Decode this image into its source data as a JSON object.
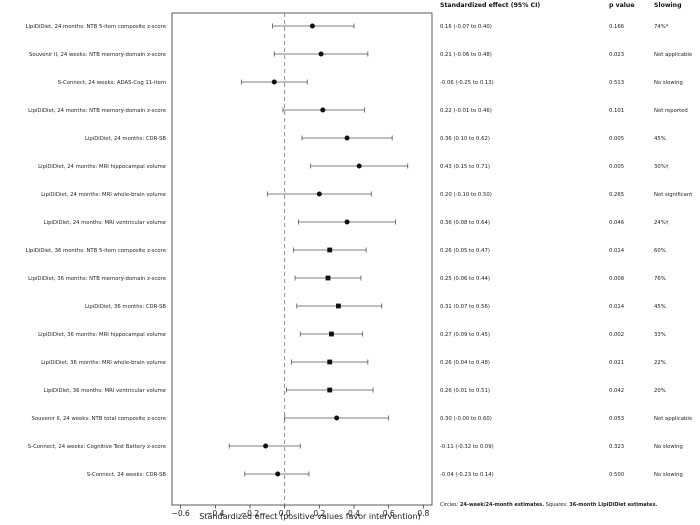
{
  "chart_data": {
    "type": "forest",
    "xlabel": "Standardized effect (positive values favor intervention)",
    "xlim": [
      -0.65,
      0.85
    ],
    "xticks": [
      -0.6,
      -0.4,
      -0.2,
      0.0,
      0.2,
      0.4,
      0.6,
      0.8
    ],
    "xtick_labels": [
      "−0.6",
      "−0.4",
      "−0.2",
      "0.0",
      "0.2",
      "0.4",
      "0.6",
      "0.8"
    ],
    "reference_line": 0.0,
    "grid": false,
    "column_headers": {
      "effect": "Standardized effect (95% CI)",
      "p": "p value",
      "slowing": "Slowing"
    },
    "footnote_prefix": "Circles: ",
    "footnote_circles": "24-week/24-month estimates.",
    "footnote_mid": " Squares: ",
    "footnote_squares": "36-month LipiDiDiet estimates.",
    "rows": [
      {
        "label": "LipiDiDiet, 24 months: NTB 5-item composite z-score",
        "est": 0.16,
        "lo": -0.07,
        "hi": 0.4,
        "ci_text": "0.16 (-0.07 to 0.40)",
        "p": "0.166",
        "slowing": "74%*",
        "marker": "circle"
      },
      {
        "label": "Souvenir II, 24 weeks: NTB memory-domain z-score",
        "est": 0.21,
        "lo": -0.06,
        "hi": 0.48,
        "ci_text": "0.21 (-0.06 to 0.48)",
        "p": "0.023",
        "slowing": "Not applicable",
        "marker": "circle"
      },
      {
        "label": "S-Connect, 24 weeks: ADAS-Cog 11-item",
        "est": -0.06,
        "lo": -0.25,
        "hi": 0.13,
        "ci_text": "-0.06 (-0.25 to 0.13)",
        "p": "0.513",
        "slowing": "No slowing",
        "marker": "circle"
      },
      {
        "label": "LipiDiDiet, 24 months: NTB memory-domain z-score",
        "est": 0.22,
        "lo": -0.01,
        "hi": 0.46,
        "ci_text": "0.22 (-0.01 to 0.46)",
        "p": "0.101",
        "slowing": "Not reported",
        "marker": "circle"
      },
      {
        "label": "LipiDiDiet, 24 months: CDR-SB",
        "est": 0.36,
        "lo": 0.1,
        "hi": 0.62,
        "ci_text": "0.36 (0.10 to 0.62)",
        "p": "0.005",
        "slowing": "45%",
        "marker": "circle"
      },
      {
        "label": "LipiDiDiet, 24 months: MRI hippocampal volume",
        "est": 0.43,
        "lo": 0.15,
        "hi": 0.71,
        "ci_text": "0.43 (0.15 to 0.71)",
        "p": "0.005",
        "slowing": "30%†",
        "marker": "circle"
      },
      {
        "label": "LipiDiDiet, 24 months: MRI whole-brain volume",
        "est": 0.2,
        "lo": -0.1,
        "hi": 0.5,
        "ci_text": "0.20 (-0.10 to 0.50)",
        "p": "0.265",
        "slowing": "Not significant",
        "marker": "circle"
      },
      {
        "label": "LipiDiDiet, 24 months: MRI ventricular volume",
        "est": 0.36,
        "lo": 0.08,
        "hi": 0.64,
        "ci_text": "0.36 (0.08 to 0.64)",
        "p": "0.046",
        "slowing": "24%†",
        "marker": "circle"
      },
      {
        "label": "LipiDiDiet, 36 months: NTB 5-item composite z-score",
        "est": 0.26,
        "lo": 0.05,
        "hi": 0.47,
        "ci_text": "0.26 (0.05 to 0.47)",
        "p": "0.014",
        "slowing": "60%",
        "marker": "square"
      },
      {
        "label": "LipiDiDiet, 36 months: NTB memory-domain z-score",
        "est": 0.25,
        "lo": 0.06,
        "hi": 0.44,
        "ci_text": "0.25 (0.06 to 0.44)",
        "p": "0.008",
        "slowing": "76%",
        "marker": "square"
      },
      {
        "label": "LipiDiDiet, 36 months: CDR-SB",
        "est": 0.31,
        "lo": 0.07,
        "hi": 0.56,
        "ci_text": "0.31 (0.07 to 0.56)",
        "p": "0.014",
        "slowing": "45%",
        "marker": "square"
      },
      {
        "label": "LipiDiDiet, 36 months: MRI hippocampal volume",
        "est": 0.27,
        "lo": 0.09,
        "hi": 0.45,
        "ci_text": "0.27 (0.09 to 0.45)",
        "p": "0.002",
        "slowing": "33%",
        "marker": "square"
      },
      {
        "label": "LipiDiDiet, 36 months: MRI whole-brain volume",
        "est": 0.26,
        "lo": 0.04,
        "hi": 0.48,
        "ci_text": "0.26 (0.04 to 0.48)",
        "p": "0.021",
        "slowing": "22%",
        "marker": "square"
      },
      {
        "label": "LipiDiDiet, 36 months: MRI ventricular volume",
        "est": 0.26,
        "lo": 0.01,
        "hi": 0.51,
        "ci_text": "0.26 (0.01 to 0.51)",
        "p": "0.042",
        "slowing": "20%",
        "marker": "square"
      },
      {
        "label": "Souvenir II, 24 weeks: NTB total composite z-score",
        "est": 0.3,
        "lo": -0.0,
        "hi": 0.6,
        "ci_text": "0.30 (-0.00 to 0.60)",
        "p": "0.053",
        "slowing": "Not applicable",
        "marker": "circle"
      },
      {
        "label": "S-Connect, 24 weeks: Cognitive Test Battery z-score",
        "est": -0.11,
        "lo": -0.32,
        "hi": 0.09,
        "ci_text": "-0.11 (-0.32 to 0.09)",
        "p": "0.323",
        "slowing": "No slowing",
        "marker": "circle"
      },
      {
        "label": "S-Connect, 24 weeks: CDR-SB",
        "est": -0.04,
        "lo": -0.23,
        "hi": 0.14,
        "ci_text": "-0.04 (-0.23 to 0.14)",
        "p": "0.500",
        "slowing": "No slowing",
        "marker": "circle"
      }
    ]
  }
}
